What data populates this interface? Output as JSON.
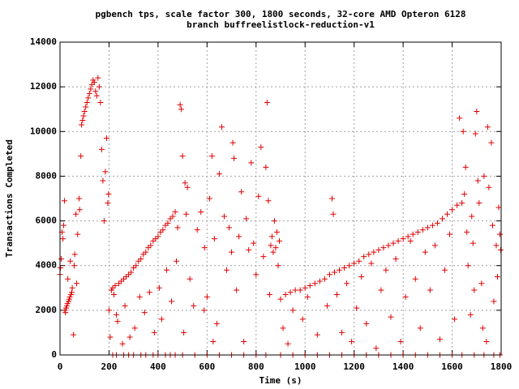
{
  "chart_data": {
    "type": "scatter",
    "title": "pgbench tps, scale factor 300, 1800 seconds, 32-core AMD Opteron 6128",
    "subtitle": "branch buffreelistlock-reduction-v1",
    "x_label": "Time (s)",
    "y_label": "Transactions Completed",
    "marker": "+",
    "color": "#e00000",
    "grid": true,
    "xlim": [
      0,
      1800
    ],
    "xticks": [
      0,
      200,
      400,
      600,
      800,
      1000,
      1200,
      1400,
      1600,
      1800
    ],
    "ylim": [
      0,
      14000
    ],
    "yticks": [
      0,
      2000,
      4000,
      6000,
      8000,
      10000,
      12000,
      14000
    ],
    "x": [
      0,
      2,
      5,
      8,
      12,
      15,
      18,
      20,
      22,
      25,
      28,
      30,
      32,
      35,
      38,
      40,
      42,
      45,
      48,
      50,
      55,
      58,
      60,
      65,
      68,
      72,
      78,
      80,
      85,
      88,
      92,
      96,
      100,
      105,
      110,
      115,
      120,
      125,
      130,
      135,
      140,
      145,
      150,
      155,
      160,
      165,
      170,
      175,
      180,
      185,
      190,
      195,
      198,
      200,
      205,
      210,
      215,
      220,
      225,
      230,
      240,
      250,
      260,
      270,
      280,
      290,
      300,
      310,
      320,
      330,
      340,
      350,
      360,
      370,
      380,
      390,
      400,
      410,
      420,
      430,
      440,
      450,
      460,
      470,
      480,
      490,
      495,
      500,
      510,
      520,
      235,
      255,
      265,
      285,
      305,
      325,
      345,
      365,
      385,
      405,
      415,
      435,
      455,
      475,
      505,
      515,
      530,
      545,
      560,
      575,
      590,
      600,
      610,
      620,
      630,
      640,
      650,
      660,
      670,
      680,
      690,
      700,
      710,
      720,
      730,
      740,
      750,
      760,
      770,
      780,
      790,
      800,
      810,
      820,
      830,
      840,
      845,
      850,
      855,
      860,
      865,
      870,
      875,
      880,
      885,
      890,
      895,
      588,
      625,
      705,
      900,
      920,
      940,
      960,
      980,
      1000,
      1020,
      1040,
      1060,
      1080,
      1100,
      1120,
      1140,
      1160,
      1180,
      1200,
      1220,
      1240,
      1260,
      1280,
      1300,
      1320,
      1340,
      1360,
      1380,
      1400,
      1420,
      1440,
      1460,
      1480,
      1500,
      1520,
      1540,
      1560,
      1580,
      1600,
      1620,
      1640,
      1660,
      1680,
      910,
      930,
      950,
      990,
      1010,
      1050,
      1090,
      1110,
      1115,
      1130,
      1150,
      1170,
      1190,
      1210,
      1230,
      1250,
      1270,
      1290,
      1310,
      1330,
      1350,
      1370,
      1390,
      1410,
      1430,
      1450,
      1470,
      1490,
      1510,
      1530,
      1550,
      1570,
      1590,
      1610,
      1630,
      1650,
      1665,
      1675,
      1685,
      1695,
      1700,
      1710,
      1720,
      1730,
      1740,
      1750,
      1760,
      1770,
      1780,
      1790,
      1795,
      1798,
      1725,
      1745,
      1765,
      1785,
      1705,
      1690,
      1655,
      1645,
      215,
      260,
      300,
      350,
      400,
      450,
      500,
      550,
      600,
      650,
      700,
      750,
      800,
      840,
      900,
      950,
      1000,
      1050,
      1100,
      1150,
      1200,
      1250,
      1300,
      1350,
      1400,
      1450,
      1500,
      1550,
      1600,
      1640,
      1690,
      1730,
      1770,
      1795,
      230,
      280,
      330,
      380,
      430,
      470
    ],
    "y": [
      3600,
      3900,
      4300,
      5500,
      5200,
      5800,
      6900,
      2000,
      1900,
      2100,
      2200,
      2300,
      3400,
      2400,
      2500,
      2600,
      4200,
      2700,
      2800,
      3000,
      900,
      4000,
      4500,
      6300,
      3200,
      5400,
      7000,
      6500,
      8900,
      10300,
      10500,
      10700,
      10900,
      11100,
      11300,
      11500,
      11700,
      11900,
      12100,
      12300,
      12200,
      11800,
      11600,
      12400,
      12000,
      11300,
      9200,
      7800,
      6000,
      8200,
      9700,
      6800,
      7200,
      2000,
      800,
      2900,
      3000,
      2700,
      3100,
      1800,
      3200,
      3300,
      3400,
      3500,
      3600,
      3700,
      3900,
      4000,
      4200,
      4300,
      4500,
      4600,
      4800,
      4900,
      5100,
      5200,
      5300,
      5500,
      5600,
      5800,
      5900,
      6100,
      6200,
      6400,
      5700,
      11200,
      11000,
      8900,
      7700,
      7500,
      1500,
      500,
      2200,
      800,
      1200,
      2600,
      1900,
      2800,
      1000,
      3000,
      1600,
      3800,
      2400,
      4200,
      1000,
      6300,
      3400,
      2200,
      5600,
      6400,
      4800,
      2600,
      7000,
      8900,
      5200,
      1400,
      8100,
      10200,
      6200,
      3800,
      5700,
      4600,
      8800,
      2900,
      5300,
      7300,
      600,
      6100,
      4700,
      8600,
      5000,
      3600,
      7100,
      9300,
      4400,
      8400,
      11300,
      6900,
      2700,
      4900,
      5300,
      4600,
      6000,
      4800,
      5500,
      4000,
      5100,
      2000,
      600,
      9500,
      2500,
      2700,
      2800,
      2900,
      2900,
      3000,
      3100,
      3200,
      3300,
      3400,
      3600,
      3700,
      3800,
      3900,
      4000,
      4100,
      4200,
      4400,
      4500,
      4600,
      4700,
      4800,
      4900,
      5000,
      5100,
      5200,
      5300,
      5400,
      5500,
      5600,
      5700,
      5800,
      5900,
      6100,
      6300,
      6500,
      6700,
      6800,
      5500,
      6200,
      1200,
      500,
      2000,
      1600,
      2600,
      900,
      2200,
      7000,
      6300,
      2700,
      1000,
      3200,
      600,
      2100,
      3500,
      1400,
      4100,
      300,
      2900,
      3800,
      1700,
      4300,
      600,
      2600,
      5100,
      3400,
      1200,
      4600,
      2900,
      4900,
      700,
      3800,
      5400,
      1600,
      10600,
      7200,
      4000,
      1800,
      5000,
      9900,
      10900,
      6800,
      3200,
      8000,
      600,
      7500,
      9500,
      2400,
      4900,
      6600,
      5400,
      4700,
      1200,
      10200,
      5800,
      3500,
      7800,
      2900,
      8400,
      10000,
      0,
      0,
      0,
      0,
      0,
      0,
      0,
      0,
      0,
      0,
      0,
      0,
      0,
      0,
      0,
      0,
      0,
      0,
      0,
      0,
      0,
      0,
      0,
      0,
      0,
      0,
      0,
      0,
      0,
      0,
      0,
      0,
      0,
      0,
      0,
      0,
      0,
      0,
      0,
      0
    ]
  }
}
